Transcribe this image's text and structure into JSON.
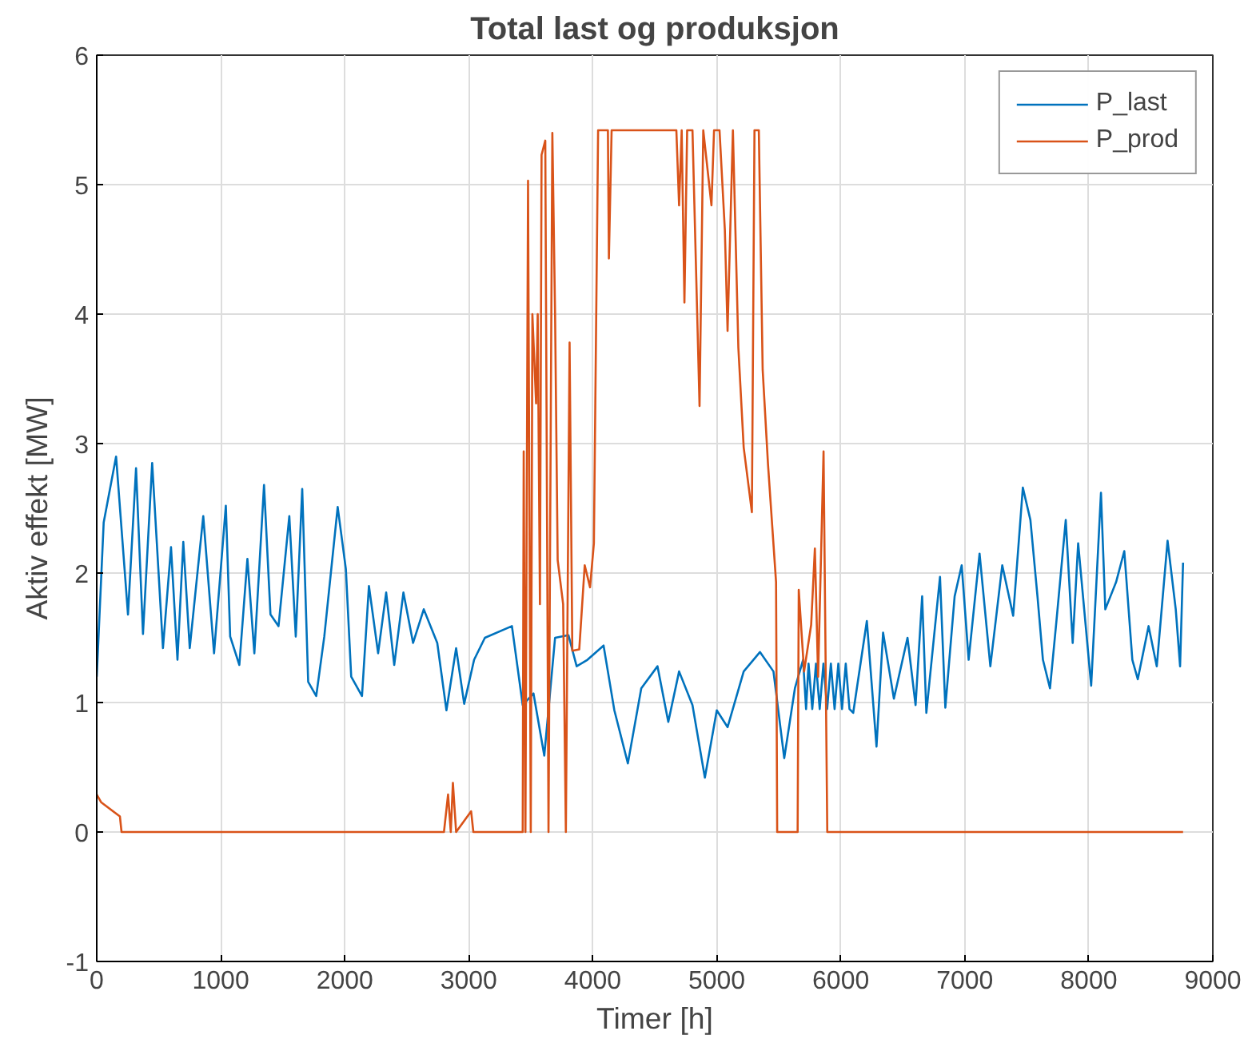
{
  "chart_data": {
    "type": "line",
    "title": "Total last og produksjon",
    "xlabel": "Timer [h]",
    "ylabel": "Aktiv effekt [MW]",
    "xlim": [
      0,
      9000
    ],
    "ylim": [
      -1,
      6
    ],
    "xticks": [
      0,
      1000,
      2000,
      3000,
      4000,
      5000,
      6000,
      7000,
      8000,
      9000
    ],
    "yticks": [
      -1,
      0,
      1,
      2,
      3,
      4,
      5,
      6
    ],
    "grid": true,
    "legend": "top right",
    "line_style": "solid",
    "marker": "none",
    "series": [
      {
        "name": "P_last",
        "color": "#0072bd",
        "x": [
          0,
          56,
          156,
          252,
          317,
          373,
          447,
          534,
          599,
          651,
          698,
          750,
          859,
          946,
          1041,
          1076,
          1150,
          1215,
          1271,
          1349,
          1401,
          1466,
          1553,
          1605,
          1657,
          1705,
          1770,
          1835,
          1943,
          2009,
          2052,
          2139,
          2195,
          2269,
          2334,
          2399,
          2473,
          2551,
          2637,
          2746,
          2820,
          2898,
          2963,
          3043,
          3130,
          3348,
          3435,
          3522,
          3609,
          3696,
          3804,
          3870,
          3957,
          4087,
          4174,
          4283,
          4391,
          4522,
          4609,
          4696,
          4804,
          4904,
          5000,
          5087,
          5217,
          5348,
          5457,
          5544,
          5630,
          5696,
          5720,
          5740,
          5770,
          5800,
          5830,
          5860,
          5890,
          5920,
          5950,
          5980,
          6010,
          6040,
          6070,
          6100,
          6210,
          6288,
          6341,
          6428,
          6538,
          6603,
          6656,
          6690,
          6800,
          6843,
          6918,
          6975,
          7031,
          7119,
          7206,
          7302,
          7390,
          7468,
          7529,
          7586,
          7630,
          7687,
          7739,
          7814,
          7870,
          7914,
          8019,
          8098,
          8133,
          8220,
          8286,
          8351,
          8395,
          8482,
          8548,
          8635,
          8701,
          8736,
          8760
        ],
        "values": [
          1.2,
          2.39,
          2.9,
          1.68,
          2.81,
          1.53,
          2.85,
          1.42,
          2.2,
          1.33,
          2.24,
          1.42,
          2.44,
          1.38,
          2.52,
          1.51,
          1.29,
          2.11,
          1.38,
          2.68,
          1.68,
          1.59,
          2.44,
          1.51,
          2.65,
          1.16,
          1.05,
          1.51,
          2.51,
          2.03,
          1.2,
          1.05,
          1.9,
          1.38,
          1.85,
          1.29,
          1.85,
          1.46,
          1.72,
          1.46,
          0.94,
          1.42,
          0.99,
          1.33,
          1.5,
          1.59,
          0.98,
          1.07,
          0.59,
          1.5,
          1.52,
          1.28,
          1.33,
          1.44,
          0.94,
          0.53,
          1.11,
          1.28,
          0.85,
          1.24,
          0.98,
          0.42,
          0.94,
          0.81,
          1.24,
          1.39,
          1.24,
          0.57,
          1.11,
          1.33,
          0.95,
          1.3,
          0.95,
          1.3,
          0.95,
          1.3,
          0.95,
          1.3,
          0.95,
          1.3,
          0.95,
          1.3,
          0.95,
          0.92,
          1.63,
          0.66,
          1.54,
          1.03,
          1.5,
          0.98,
          1.82,
          0.92,
          1.97,
          0.96,
          1.82,
          2.06,
          1.33,
          2.15,
          1.28,
          2.06,
          1.67,
          2.66,
          2.41,
          1.82,
          1.33,
          1.11,
          1.63,
          2.41,
          1.46,
          2.23,
          1.13,
          2.62,
          1.72,
          1.93,
          2.17,
          1.33,
          1.18,
          1.59,
          1.28,
          2.25,
          1.72,
          1.28,
          2.08
        ]
      },
      {
        "name": "P_prod",
        "color": "#d95319",
        "x": [
          0,
          35,
          187,
          200,
          2800,
          2833,
          2855,
          2872,
          2898,
          3019,
          3037,
          3435,
          3443,
          3457,
          3478,
          3500,
          3513,
          3543,
          3556,
          3574,
          3587,
          3617,
          3643,
          3674,
          3696,
          3717,
          3761,
          3783,
          3813,
          3835,
          3891,
          3935,
          3978,
          4009,
          4043,
          4122,
          4130,
          4152,
          4674,
          4696,
          4717,
          4739,
          4761,
          4804,
          4861,
          4891,
          4957,
          4978,
          5022,
          5065,
          5087,
          5130,
          5174,
          5217,
          5283,
          5304,
          5339,
          5370,
          5413,
          5478,
          5487,
          5652,
          5661,
          5704,
          5761,
          5791,
          5817,
          5861,
          5891,
          8760
        ],
        "values": [
          0.29,
          0.23,
          0.12,
          0,
          0,
          0.29,
          0,
          0.38,
          0,
          0.16,
          0,
          0,
          2.94,
          0,
          5.03,
          0,
          4.0,
          3.31,
          4.0,
          1.76,
          5.23,
          5.34,
          0,
          5.4,
          4.0,
          2.1,
          1.76,
          0,
          3.78,
          1.4,
          1.41,
          2.06,
          1.89,
          2.23,
          5.42,
          5.42,
          4.43,
          5.42,
          5.42,
          4.84,
          5.42,
          4.09,
          5.42,
          5.42,
          3.29,
          5.42,
          4.84,
          5.42,
          5.42,
          4.65,
          3.87,
          5.42,
          3.74,
          2.97,
          2.47,
          5.42,
          5.42,
          3.57,
          2.84,
          1.93,
          0,
          0,
          1.87,
          1.24,
          1.6,
          2.19,
          1.2,
          2.94,
          0,
          0
        ]
      }
    ]
  }
}
